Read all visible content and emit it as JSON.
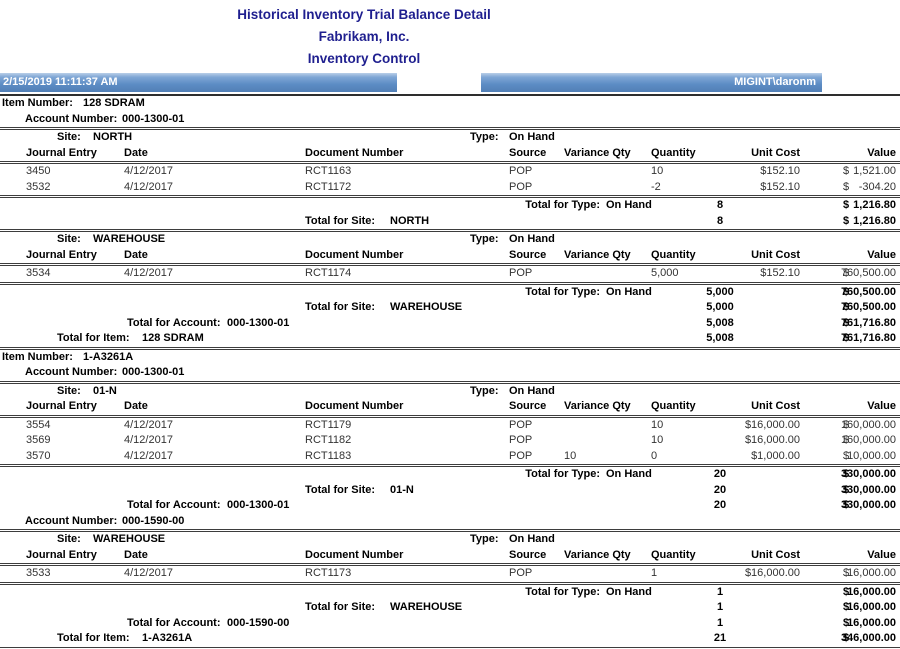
{
  "report": {
    "title": "Historical Inventory Trial Balance Detail",
    "company": "Fabrikam, Inc.",
    "module": "Inventory Control",
    "datetime": "2/15/2019 11:11:37 AM",
    "user": "MIGINT\\daronm"
  },
  "labels": {
    "item_number": "Item Number:",
    "account_number": "Account Number:",
    "site": "Site:",
    "type": "Type:",
    "total_type": "Total for Type:",
    "total_site": "Total for Site:",
    "total_account": "Total for Account:",
    "total_item": "Total for Item:",
    "currency": "$"
  },
  "columns": {
    "journal": "Journal Entry",
    "date": "Date",
    "doc": "Document Number",
    "source": "Source",
    "variance": "Variance Qty",
    "qty": "Quantity",
    "unit_cost": "Unit Cost",
    "value": "Value"
  },
  "items": [
    {
      "item_number": "128 SDRAM",
      "accounts": [
        {
          "account_number": "000-1300-01",
          "sites": [
            {
              "site": "NORTH",
              "type": "On Hand",
              "rows": [
                {
                  "journal": "3450",
                  "date": "4/12/2017",
                  "doc": "RCT1163",
                  "source": "POP",
                  "variance": "",
                  "qty": "10",
                  "unit_cost": "$152.10",
                  "value": "1,521.00"
                },
                {
                  "journal": "3532",
                  "date": "4/12/2017",
                  "doc": "RCT1172",
                  "source": "POP",
                  "variance": "",
                  "qty": "-2",
                  "unit_cost": "$152.10",
                  "value": "-304.20"
                }
              ],
              "total_type": {
                "type": "On Hand",
                "qty": "8",
                "value": "1,216.80"
              },
              "total_site": {
                "site": "NORTH",
                "qty": "8",
                "value": "1,216.80"
              }
            },
            {
              "site": "WAREHOUSE",
              "type": "On Hand",
              "rows": [
                {
                  "journal": "3534",
                  "date": "4/12/2017",
                  "doc": "RCT1174",
                  "source": "POP",
                  "variance": "",
                  "qty": "5,000",
                  "unit_cost": "$152.10",
                  "value": "760,500.00"
                }
              ],
              "total_type": {
                "type": "On Hand",
                "qty": "5,000",
                "value": "760,500.00"
              },
              "total_site": {
                "site": "WAREHOUSE",
                "qty": "5,000",
                "value": "760,500.00"
              }
            }
          ],
          "total_account": {
            "account": "000-1300-01",
            "qty": "5,008",
            "value": "761,716.80"
          }
        }
      ],
      "total_item": {
        "item": "128 SDRAM",
        "qty": "5,008",
        "value": "761,716.80"
      }
    },
    {
      "item_number": "1-A3261A",
      "accounts": [
        {
          "account_number": "000-1300-01",
          "sites": [
            {
              "site": "01-N",
              "type": "On Hand",
              "rows": [
                {
                  "journal": "3554",
                  "date": "4/12/2017",
                  "doc": "RCT1179",
                  "source": "POP",
                  "variance": "",
                  "qty": "10",
                  "unit_cost": "$16,000.00",
                  "value": "160,000.00"
                },
                {
                  "journal": "3569",
                  "date": "4/12/2017",
                  "doc": "RCT1182",
                  "source": "POP",
                  "variance": "",
                  "qty": "10",
                  "unit_cost": "$16,000.00",
                  "value": "160,000.00"
                },
                {
                  "journal": "3570",
                  "date": "4/12/2017",
                  "doc": "RCT1183",
                  "source": "POP",
                  "variance": "10",
                  "qty": "0",
                  "unit_cost": "$1,000.00",
                  "value": "10,000.00"
                }
              ],
              "total_type": {
                "type": "On Hand",
                "qty": "20",
                "value": "330,000.00"
              },
              "total_site": {
                "site": "01-N",
                "qty": "20",
                "value": "330,000.00"
              }
            }
          ],
          "total_account": {
            "account": "000-1300-01",
            "qty": "20",
            "value": "330,000.00"
          }
        },
        {
          "account_number": "000-1590-00",
          "sites": [
            {
              "site": "WAREHOUSE",
              "type": "On Hand",
              "rows": [
                {
                  "journal": "3533",
                  "date": "4/12/2017",
                  "doc": "RCT1173",
                  "source": "POP",
                  "variance": "",
                  "qty": "1",
                  "unit_cost": "$16,000.00",
                  "value": "16,000.00"
                }
              ],
              "total_type": {
                "type": "On Hand",
                "qty": "1",
                "value": "16,000.00"
              },
              "total_site": {
                "site": "WAREHOUSE",
                "qty": "1",
                "value": "16,000.00"
              }
            }
          ],
          "total_account": {
            "account": "000-1590-00",
            "qty": "1",
            "value": "16,000.00"
          }
        }
      ],
      "total_item": {
        "item": "1-A3261A",
        "qty": "21",
        "value": "346,000.00"
      }
    }
  ]
}
